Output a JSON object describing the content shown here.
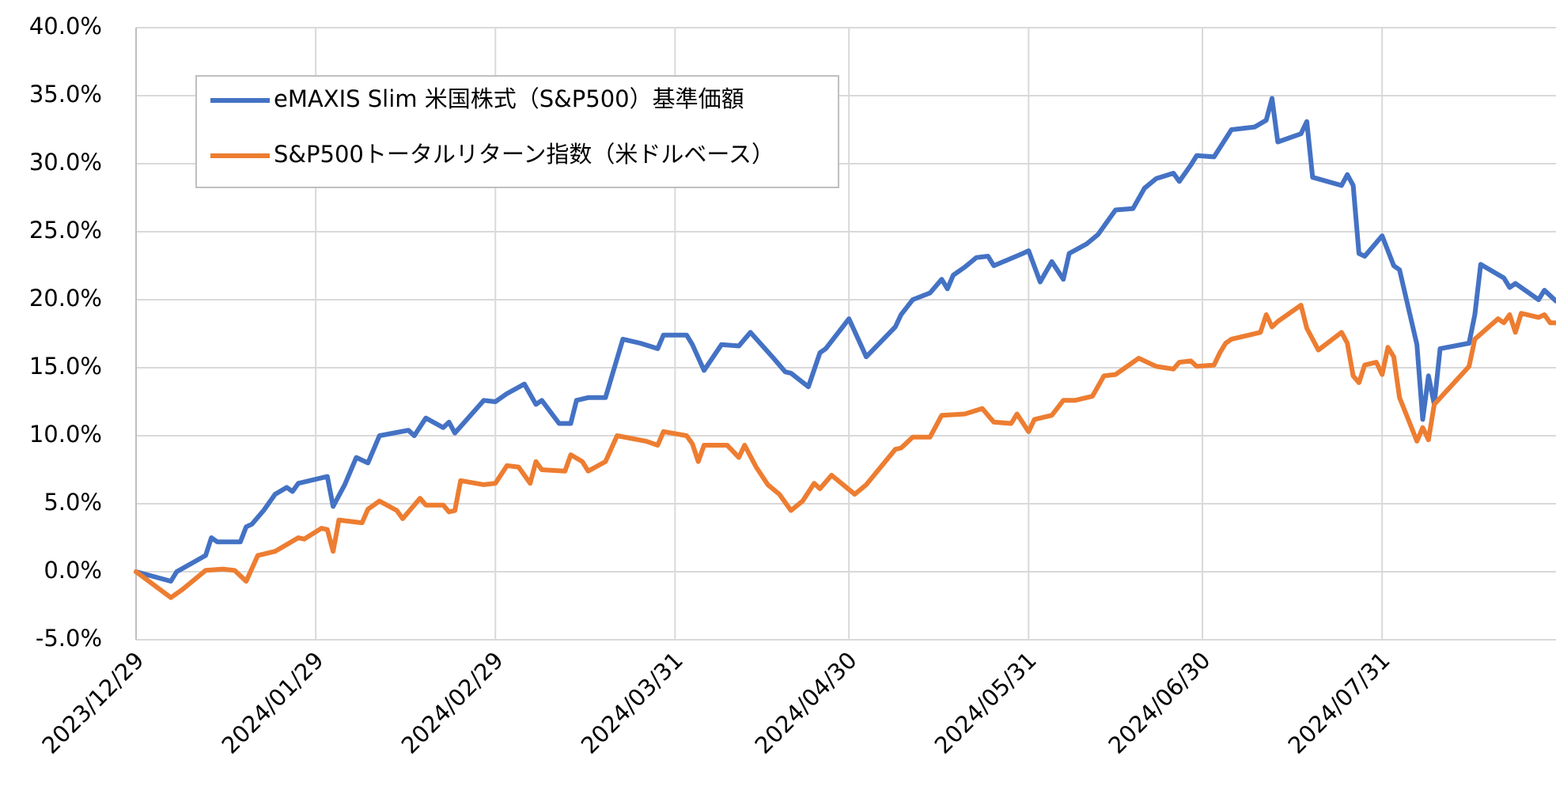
{
  "chart_data": {
    "type": "line",
    "xlim": [
      "2023/12/29",
      "2024/08/30"
    ],
    "xticks": [
      "2023/12/29",
      "2024/01/29",
      "2024/02/29",
      "2024/03/31",
      "2024/04/30",
      "2024/05/31",
      "2024/06/30",
      "2024/07/31"
    ],
    "ylim": [
      -5,
      40
    ],
    "yticks": [
      {
        "value": -5,
        "label": "-5.0%"
      },
      {
        "value": 0,
        "label": "0.0%"
      },
      {
        "value": 5,
        "label": "5.0%"
      },
      {
        "value": 10,
        "label": "10.0%"
      },
      {
        "value": 15,
        "label": "15.0%"
      },
      {
        "value": 20,
        "label": "20.0%"
      },
      {
        "value": 25,
        "label": "25.0%"
      },
      {
        "value": 30,
        "label": "30.0%"
      },
      {
        "value": 35,
        "label": "35.0%"
      },
      {
        "value": 40,
        "label": "40.0%"
      }
    ],
    "grid": true,
    "legend": "upper left",
    "series": [
      {
        "name": "eMAXIS Slim 米国株式（S&P500）基準価額",
        "color": "#4472c4",
        "x": [
          "2023/12/29",
          "2024/01/04",
          "2024/01/05",
          "2024/01/10",
          "2024/01/11",
          "2024/01/12",
          "2024/01/16",
          "2024/01/17",
          "2024/01/18",
          "2024/01/20",
          "2024/01/22",
          "2024/01/24",
          "2024/01/25",
          "2024/01/26",
          "2024/01/31",
          "2024/02/01",
          "2024/02/03",
          "2024/02/05",
          "2024/02/07",
          "2024/02/09",
          "2024/02/14",
          "2024/02/15",
          "2024/02/17",
          "2024/02/20",
          "2024/02/21",
          "2024/02/22",
          "2024/02/27",
          "2024/02/29",
          "2024/03/02",
          "2024/03/05",
          "2024/03/07",
          "2024/03/08",
          "2024/03/11",
          "2024/03/13",
          "2024/03/14",
          "2024/03/16",
          "2024/03/19",
          "2024/03/22",
          "2024/03/25",
          "2024/03/28",
          "2024/03/29",
          "2024/04/02",
          "2024/04/03",
          "2024/04/05",
          "2024/04/08",
          "2024/04/11",
          "2024/04/13",
          "2024/04/17",
          "2024/04/19",
          "2024/04/20",
          "2024/04/23",
          "2024/04/25",
          "2024/04/26",
          "2024/04/30",
          "2024/05/03",
          "2024/05/08",
          "2024/05/09",
          "2024/05/11",
          "2024/05/14",
          "2024/05/16",
          "2024/05/17",
          "2024/05/18",
          "2024/05/20",
          "2024/05/22",
          "2024/05/24",
          "2024/05/25",
          "2024/05/30",
          "2024/05/31",
          "2024/06/02",
          "2024/06/04",
          "2024/06/06",
          "2024/06/07",
          "2024/06/10",
          "2024/06/12",
          "2024/06/13",
          "2024/06/15",
          "2024/06/18",
          "2024/06/20",
          "2024/06/22",
          "2024/06/25",
          "2024/06/26",
          "2024/06/28",
          "2024/06/29",
          "2024/07/02",
          "2024/07/05",
          "2024/07/09",
          "2024/07/11",
          "2024/07/12",
          "2024/07/13",
          "2024/07/17",
          "2024/07/18",
          "2024/07/19",
          "2024/07/24",
          "2024/07/25",
          "2024/07/26",
          "2024/07/27",
          "2024/07/28",
          "2024/07/31",
          "2024/08/02",
          "2024/08/03",
          "2024/08/06",
          "2024/08/07",
          "2024/08/08",
          "2024/08/09",
          "2024/08/10",
          "2024/08/15",
          "2024/08/16",
          "2024/08/17",
          "2024/08/21",
          "2024/08/22",
          "2024/08/23",
          "2024/08/27",
          "2024/08/28",
          "2024/08/30"
        ],
        "values": [
          0,
          -0.7,
          0.0,
          1.2,
          2.5,
          2.2,
          2.2,
          3.3,
          3.5,
          4.5,
          5.7,
          6.2,
          5.9,
          6.5,
          7.0,
          4.8,
          6.4,
          8.4,
          8.0,
          10.0,
          10.4,
          10.0,
          11.3,
          10.6,
          11.0,
          10.2,
          12.6,
          12.5,
          13.1,
          13.8,
          12.3,
          12.6,
          10.9,
          10.9,
          12.6,
          12.8,
          12.8,
          17.1,
          16.8,
          16.4,
          17.4,
          17.4,
          16.7,
          14.8,
          16.7,
          16.6,
          17.6,
          15.7,
          14.7,
          14.6,
          13.6,
          16.1,
          16.4,
          18.6,
          15.8,
          18.0,
          18.9,
          20.0,
          20.5,
          21.5,
          20.8,
          21.8,
          22.4,
          23.1,
          23.2,
          22.5,
          23.4,
          23.6,
          21.3,
          22.8,
          21.5,
          23.4,
          24.1,
          24.8,
          25.4,
          26.6,
          26.7,
          28.2,
          28.9,
          29.3,
          28.7,
          29.9,
          30.6,
          30.5,
          32.5,
          32.7,
          33.2,
          34.8,
          31.6,
          32.2,
          33.1,
          29.0,
          28.4,
          29.2,
          28.4,
          23.4,
          23.2,
          24.7,
          22.5,
          22.2,
          16.7,
          11.2,
          14.4,
          12.3,
          16.4,
          16.8,
          18.9,
          22.6,
          21.6,
          20.9,
          21.2,
          20.0,
          20.7,
          19.9
        ]
      },
      {
        "name": "S&P500トータルリターン指数（米ドルベース）",
        "color": "#ed7d31",
        "x": [
          "2023/12/29",
          "2024/01/04",
          "2024/01/06",
          "2024/01/10",
          "2024/01/13",
          "2024/01/15",
          "2024/01/17",
          "2024/01/19",
          "2024/01/22",
          "2024/01/24",
          "2024/01/26",
          "2024/01/27",
          "2024/01/30",
          "2024/01/31",
          "2024/02/01",
          "2024/02/02",
          "2024/02/06",
          "2024/02/07",
          "2024/02/09",
          "2024/02/12",
          "2024/02/13",
          "2024/02/16",
          "2024/02/17",
          "2024/02/20",
          "2024/02/21",
          "2024/02/22",
          "2024/02/23",
          "2024/02/27",
          "2024/02/29",
          "2024/03/02",
          "2024/03/04",
          "2024/03/06",
          "2024/03/07",
          "2024/03/08",
          "2024/03/12",
          "2024/03/13",
          "2024/03/15",
          "2024/03/16",
          "2024/03/19",
          "2024/03/21",
          "2024/03/26",
          "2024/03/28",
          "2024/03/29",
          "2024/04/02",
          "2024/04/03",
          "2024/04/04",
          "2024/04/05",
          "2024/04/09",
          "2024/04/11",
          "2024/04/12",
          "2024/04/14",
          "2024/04/16",
          "2024/04/18",
          "2024/04/20",
          "2024/04/22",
          "2024/04/24",
          "2024/04/25",
          "2024/04/27",
          "2024/05/01",
          "2024/05/03",
          "2024/05/08",
          "2024/05/09",
          "2024/05/11",
          "2024/05/14",
          "2024/05/16",
          "2024/05/20",
          "2024/05/23",
          "2024/05/25",
          "2024/05/28",
          "2024/05/29",
          "2024/05/31",
          "2024/06/01",
          "2024/06/04",
          "2024/06/06",
          "2024/06/08",
          "2024/06/11",
          "2024/06/13",
          "2024/06/15",
          "2024/06/19",
          "2024/06/22",
          "2024/06/25",
          "2024/06/26",
          "2024/06/28",
          "2024/06/29",
          "2024/07/02",
          "2024/07/03",
          "2024/07/04",
          "2024/07/05",
          "2024/07/10",
          "2024/07/11",
          "2024/07/12",
          "2024/07/13",
          "2024/07/17",
          "2024/07/18",
          "2024/07/20",
          "2024/07/24",
          "2024/07/25",
          "2024/07/26",
          "2024/07/27",
          "2024/07/28",
          "2024/07/30",
          "2024/07/31",
          "2024/08/01",
          "2024/08/02",
          "2024/08/03",
          "2024/08/06",
          "2024/08/07",
          "2024/08/08",
          "2024/08/09",
          "2024/08/15",
          "2024/08/16",
          "2024/08/20",
          "2024/08/21",
          "2024/08/22",
          "2024/08/23",
          "2024/08/24",
          "2024/08/27",
          "2024/08/28",
          "2024/08/29",
          "2024/08/30"
        ],
        "values": [
          0,
          -1.9,
          -1.3,
          0.1,
          0.2,
          0.1,
          -0.7,
          1.2,
          1.5,
          2.0,
          2.5,
          2.4,
          3.2,
          3.1,
          1.5,
          3.8,
          3.6,
          4.6,
          5.2,
          4.5,
          3.9,
          5.4,
          4.9,
          4.9,
          4.4,
          4.5,
          6.7,
          6.4,
          6.5,
          7.8,
          7.7,
          6.5,
          8.1,
          7.5,
          7.4,
          8.6,
          8.1,
          7.4,
          8.1,
          10.0,
          9.6,
          9.3,
          10.3,
          10.0,
          9.4,
          8.1,
          9.3,
          9.3,
          8.4,
          9.3,
          7.7,
          6.4,
          5.7,
          4.5,
          5.2,
          6.5,
          6.1,
          7.1,
          5.7,
          6.4,
          9.0,
          9.1,
          9.9,
          9.9,
          11.5,
          11.6,
          12.0,
          11.0,
          10.9,
          11.6,
          10.3,
          11.2,
          11.5,
          12.6,
          12.6,
          12.9,
          14.4,
          14.5,
          15.7,
          15.1,
          14.9,
          15.4,
          15.5,
          15.1,
          15.2,
          16.1,
          16.8,
          17.1,
          17.6,
          18.9,
          18.0,
          18.4,
          19.6,
          17.9,
          16.3,
          17.6,
          16.8,
          14.4,
          13.9,
          15.2,
          15.4,
          14.5,
          16.5,
          15.8,
          12.8,
          9.6,
          10.6,
          9.7,
          12.3,
          15.1,
          17.1,
          18.6,
          18.3,
          18.9,
          17.6,
          19.0,
          18.7,
          18.9,
          18.3,
          18.3
        ]
      }
    ]
  }
}
